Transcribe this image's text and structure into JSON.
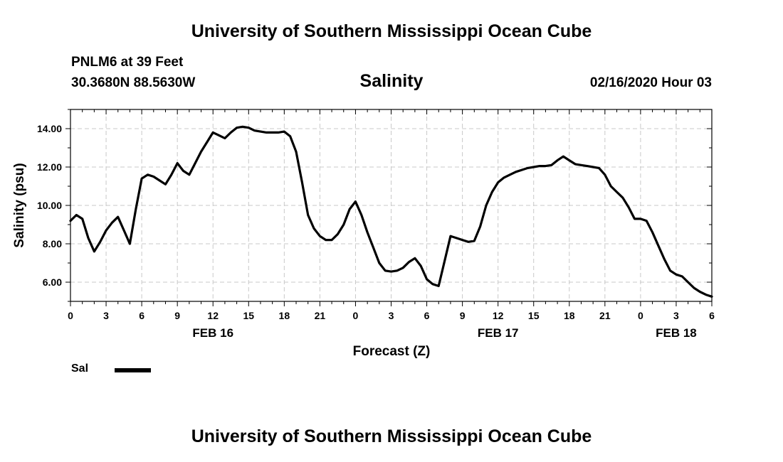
{
  "header": {
    "title": "University of Southern Mississippi Ocean Cube",
    "station": "PNLM6 at 39 Feet",
    "coordinates": "30.3680N 88.5630W",
    "chart_title": "Salinity",
    "date": "02/16/2020 Hour 03"
  },
  "footer": {
    "title": "University of Southern Mississippi Ocean Cube"
  },
  "legend": {
    "label": "Sal",
    "color": "#000000"
  },
  "chart_data": {
    "type": "line",
    "title": "Salinity",
    "xlabel": "Forecast (Z)",
    "ylabel": "Salinity (psu)",
    "ylim": [
      5.0,
      15.0
    ],
    "xlim": [
      0,
      54
    ],
    "grid": true,
    "x_tick_values": [
      0,
      3,
      6,
      9,
      12,
      15,
      18,
      21,
      24,
      27,
      30,
      33,
      36,
      39,
      42,
      45,
      48,
      51,
      54
    ],
    "x_tick_labels": [
      "0",
      "3",
      "6",
      "9",
      "12",
      "15",
      "18",
      "21",
      "0",
      "3",
      "6",
      "9",
      "12",
      "15",
      "18",
      "21",
      "0",
      "3",
      "6"
    ],
    "y_ticks": [
      6.0,
      8.0,
      10.0,
      12.0,
      14.0
    ],
    "y_tick_labels": [
      "6.00",
      "8.00",
      "10.00",
      "12.00",
      "14.00"
    ],
    "date_labels": [
      {
        "label": "FEB 16",
        "x": 12
      },
      {
        "label": "FEB 17",
        "x": 36
      },
      {
        "label": "FEB 18",
        "x": 51
      }
    ],
    "series": [
      {
        "name": "Sal",
        "x": [
          0,
          0.5,
          1,
          1.5,
          2,
          2.5,
          3,
          3.5,
          4,
          4.5,
          5,
          5.5,
          6,
          6.5,
          7,
          7.5,
          8,
          8.5,
          9,
          9.5,
          10,
          10.5,
          11,
          11.5,
          12,
          12.5,
          13,
          13.5,
          14,
          14.5,
          15,
          15.5,
          16,
          16.5,
          17,
          17.5,
          18,
          18.5,
          19,
          19.5,
          20,
          20.5,
          21,
          21.5,
          22,
          22.5,
          23,
          23.5,
          24,
          24.5,
          25,
          25.5,
          26,
          26.5,
          27,
          27.5,
          28,
          28.5,
          29,
          29.5,
          30,
          30.5,
          31,
          31.5,
          32,
          32.5,
          33,
          33.5,
          34,
          34.5,
          35,
          35.5,
          36,
          36.5,
          37,
          37.5,
          38,
          38.5,
          39,
          39.5,
          40,
          40.5,
          41,
          41.5,
          42,
          42.5,
          43,
          43.5,
          44,
          44.5,
          45,
          45.5,
          46,
          46.5,
          47,
          47.5,
          48,
          48.5,
          49,
          49.5,
          50,
          50.5,
          51,
          51.5,
          52,
          52.5,
          53,
          53.5,
          54
        ],
        "values": [
          9.2,
          9.5,
          9.3,
          8.3,
          7.6,
          8.1,
          8.7,
          9.1,
          9.4,
          8.7,
          8.0,
          9.8,
          11.4,
          11.6,
          11.5,
          11.3,
          11.1,
          11.6,
          12.2,
          11.8,
          11.6,
          12.2,
          12.8,
          13.3,
          13.8,
          13.65,
          13.5,
          13.8,
          14.05,
          14.1,
          14.05,
          13.9,
          13.85,
          13.8,
          13.8,
          13.8,
          13.85,
          13.6,
          12.8,
          11.2,
          9.5,
          8.8,
          8.4,
          8.2,
          8.2,
          8.5,
          9.0,
          9.8,
          10.2,
          9.5,
          8.6,
          7.8,
          7.0,
          6.6,
          6.55,
          6.6,
          6.75,
          7.05,
          7.25,
          6.85,
          6.15,
          5.9,
          5.8,
          7.1,
          8.4,
          8.3,
          8.2,
          8.1,
          8.15,
          8.9,
          10.0,
          10.7,
          11.2,
          11.45,
          11.6,
          11.75,
          11.85,
          11.95,
          12.0,
          12.05,
          12.05,
          12.1,
          12.35,
          12.55,
          12.35,
          12.15,
          12.1,
          12.05,
          12.0,
          11.95,
          11.6,
          11.0,
          10.7,
          10.4,
          9.9,
          9.3,
          9.3,
          9.2,
          8.6,
          7.9,
          7.2,
          6.6,
          6.4,
          6.3,
          6.0,
          5.7,
          5.5,
          5.35,
          5.25
        ]
      }
    ]
  }
}
